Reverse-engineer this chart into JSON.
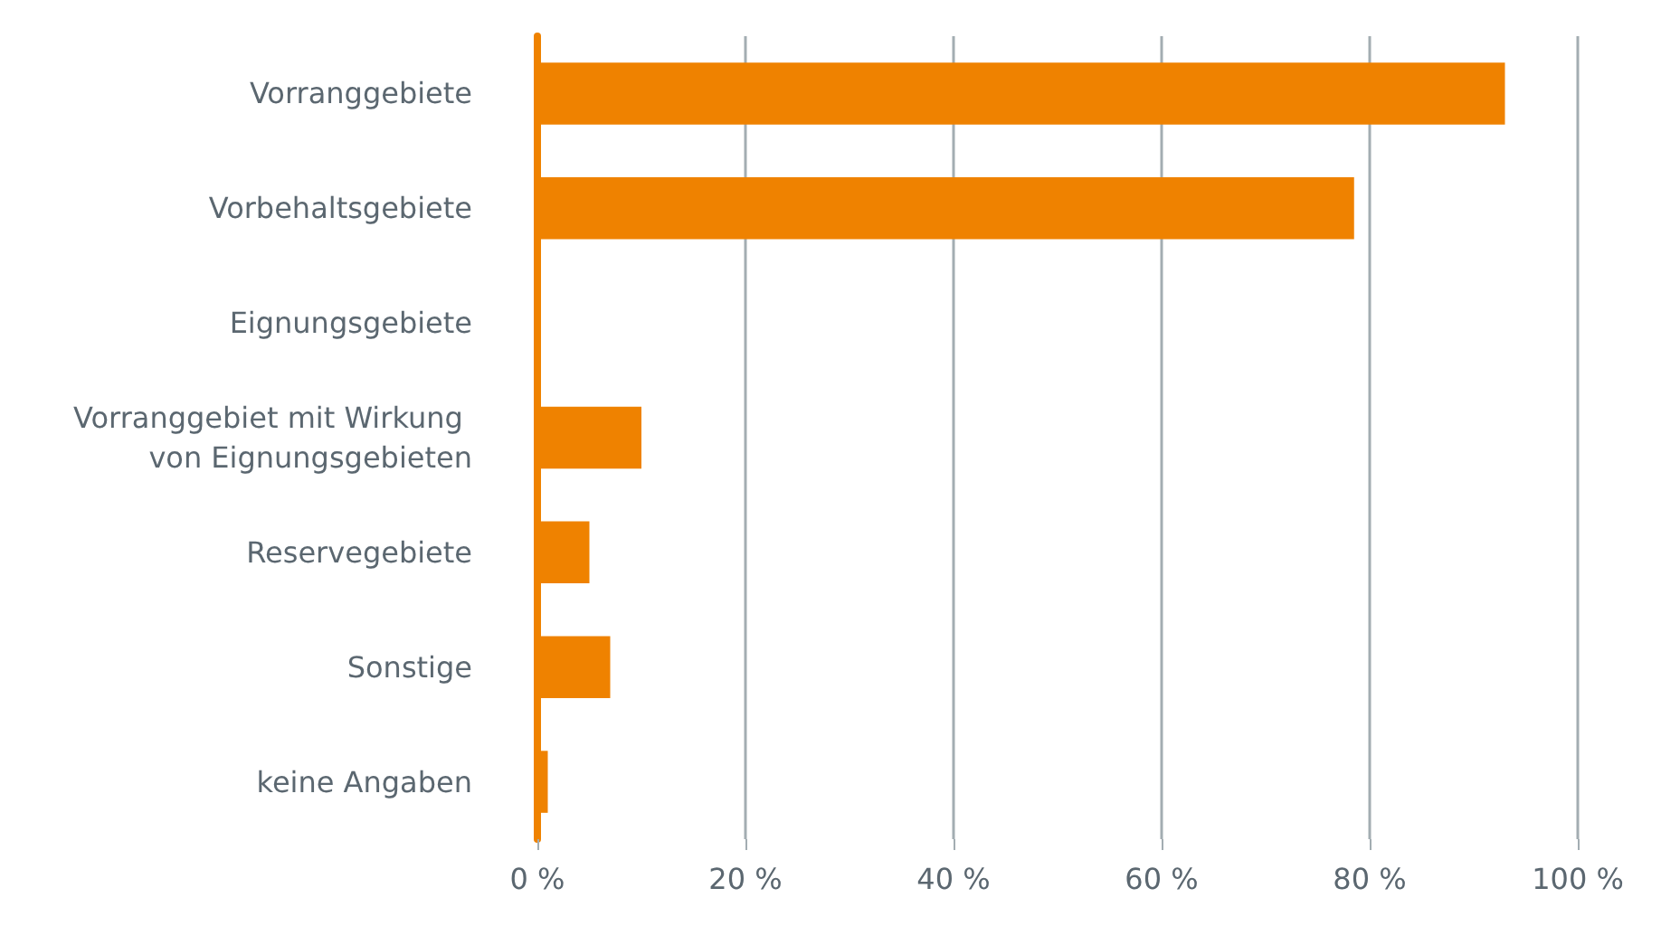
{
  "chart_data": {
    "type": "bar",
    "orientation": "horizontal",
    "categories": [
      "Vorranggebiete",
      "Vorbehaltsgebiete",
      "Eignungsgebiete",
      "Vorranggebiet mit Wirkung von Eignungsgebieten",
      "Reservegebiete",
      "Sonstige",
      "keine Angaben"
    ],
    "values": [
      93,
      78.5,
      0,
      10,
      5,
      7,
      1
    ],
    "color": "#ef8200",
    "xlim": [
      0,
      100
    ],
    "xticks": [
      {
        "value": 0,
        "label": "0 %"
      },
      {
        "value": 20,
        "label": "20 %"
      },
      {
        "value": 40,
        "label": "40 %"
      },
      {
        "value": 60,
        "label": "60 %"
      },
      {
        "value": 80,
        "label": "80 %"
      },
      {
        "value": 100,
        "label": "100 %"
      }
    ],
    "grid": "x"
  }
}
